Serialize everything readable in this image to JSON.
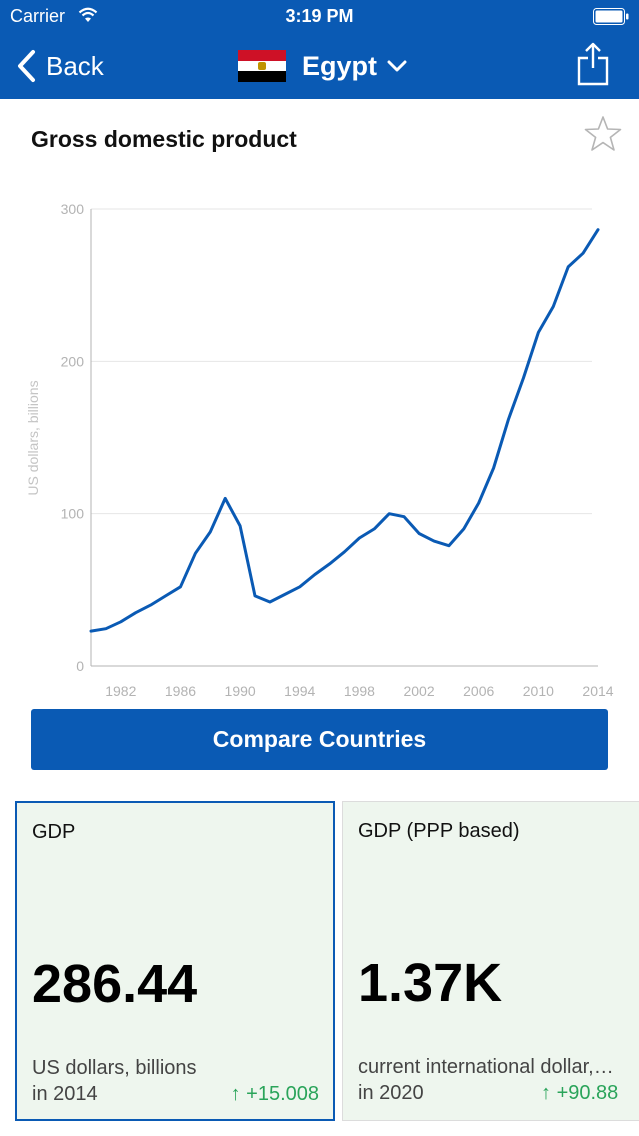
{
  "status_bar": {
    "carrier": "Carrier",
    "time": "3:19 PM"
  },
  "nav": {
    "back_label": "Back",
    "country": "Egypt"
  },
  "indicator": {
    "title": "Gross domestic product"
  },
  "compare_button": "Compare Countries",
  "cards": [
    {
      "label": "GDP",
      "value": "286.44",
      "unit": "US dollars, billions",
      "year": "in 2014",
      "change": "+15.008"
    },
    {
      "label": "GDP (PPP based)",
      "value": "1.37K",
      "unit": "current international dollar,…",
      "year": "in 2020",
      "change": "+90.88"
    }
  ],
  "colors": {
    "brand": "#0a5ab4",
    "positive": "#2aa45a",
    "card_bg": "#eef6ee"
  },
  "icons": [
    "wifi-icon",
    "battery-icon",
    "back-chevron-icon",
    "egypt-flag-icon",
    "dropdown-chevron-icon",
    "share-icon",
    "star-icon"
  ],
  "chart_data": {
    "type": "line",
    "title": "",
    "xlabel": "",
    "ylabel": "US dollars, billions",
    "ylim": [
      0,
      300
    ],
    "xlim": [
      1980,
      2014
    ],
    "xticks": [
      "1982",
      "1986",
      "1990",
      "1994",
      "1998",
      "2002",
      "2006",
      "2010",
      "2014"
    ],
    "yticks": [
      "0",
      "100",
      "200",
      "300"
    ],
    "grid": true,
    "series": [
      {
        "x": [
          1980,
          1981,
          1982,
          1983,
          1984,
          1985,
          1986,
          1987,
          1988,
          1989,
          1990,
          1991,
          1992,
          1993,
          1994,
          1995,
          1996,
          1997,
          1998,
          1999,
          2000,
          2001,
          2002,
          2003,
          2004,
          2005,
          2006,
          2007,
          2008,
          2009,
          2010,
          2011,
          2012,
          2013,
          2014
        ],
        "values": [
          22.9,
          24.5,
          29,
          35,
          40,
          46,
          52,
          74,
          88,
          110,
          92,
          46,
          42,
          47,
          52,
          60,
          67,
          75,
          84,
          90,
          100,
          98,
          87,
          82,
          79,
          90,
          107,
          130,
          162,
          189,
          219,
          236,
          262,
          271,
          286.4
        ]
      }
    ]
  }
}
